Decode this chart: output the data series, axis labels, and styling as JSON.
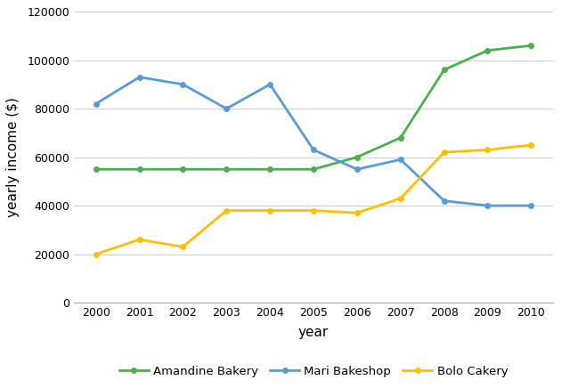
{
  "years": [
    2000,
    2001,
    2002,
    2003,
    2004,
    2005,
    2006,
    2007,
    2008,
    2009,
    2010
  ],
  "amandine": [
    55000,
    55000,
    55000,
    55000,
    55000,
    55000,
    60000,
    68000,
    96000,
    104000,
    106000
  ],
  "mari": [
    82000,
    93000,
    90000,
    80000,
    90000,
    63000,
    55000,
    59000,
    42000,
    40000,
    40000
  ],
  "bolo": [
    20000,
    26000,
    23000,
    38000,
    38000,
    38000,
    37000,
    43000,
    62000,
    63000,
    65000
  ],
  "amandine_color": "#4CAF50",
  "mari_color": "#5B9BD5",
  "bolo_color": "#FFC000",
  "xlabel": "year",
  "ylabel": "yearly income ($)",
  "ylim": [
    0,
    120000
  ],
  "yticks": [
    0,
    20000,
    40000,
    60000,
    80000,
    100000,
    120000
  ],
  "legend_labels": [
    "Amandine Bakery",
    "Mari Bakeshop",
    "Bolo Cakery"
  ],
  "grid_color": "#d0d0d0",
  "background_color": "#ffffff"
}
